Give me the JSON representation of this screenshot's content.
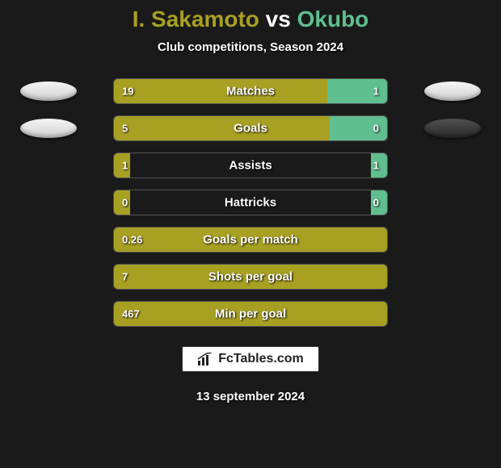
{
  "title": {
    "player1": "I. Sakamoto",
    "vs": "vs",
    "player2": "Okubo",
    "player1_color": "#a8a023",
    "vs_color": "#ffffff",
    "player2_color": "#5fbf8f"
  },
  "subtitle": "Club competitions, Season 2024",
  "colors": {
    "bar_p1": "#a8a023",
    "bar_p2": "#5fbf8f",
    "background": "#1a1a1a",
    "text": "#ffffff"
  },
  "stats": [
    {
      "label": "Matches",
      "v1": "19",
      "v2": "1",
      "p1_pct": 78,
      "p2_pct": 22,
      "badge_left": "light",
      "badge_right": "light"
    },
    {
      "label": "Goals",
      "v1": "5",
      "v2": "0",
      "p1_pct": 79,
      "p2_pct": 21,
      "badge_left": "light",
      "badge_right": "dark"
    },
    {
      "label": "Assists",
      "v1": "1",
      "v2": "1",
      "p1_pct": 6,
      "p2_pct": 6
    },
    {
      "label": "Hattricks",
      "v1": "0",
      "v2": "0",
      "p1_pct": 6,
      "p2_pct": 6
    },
    {
      "label": "Goals per match",
      "v1": "0.26",
      "v2": "",
      "p1_pct": 100,
      "p2_pct": 0
    },
    {
      "label": "Shots per goal",
      "v1": "7",
      "v2": "",
      "p1_pct": 100,
      "p2_pct": 0
    },
    {
      "label": "Min per goal",
      "v1": "467",
      "v2": "",
      "p1_pct": 100,
      "p2_pct": 0
    }
  ],
  "logo": {
    "text": "FcTables.com"
  },
  "date": "13 september 2024"
}
